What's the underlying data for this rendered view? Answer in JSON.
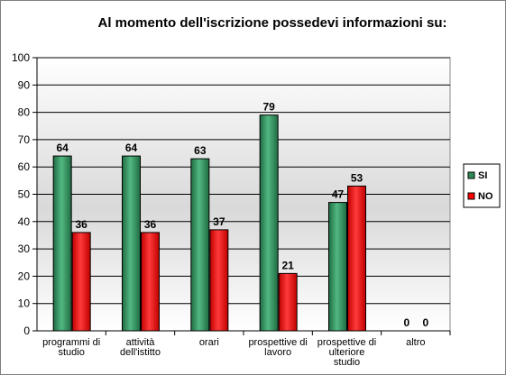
{
  "chart_data": {
    "type": "bar",
    "title": "Al momento dell'iscrizione possedevi informazioni su:",
    "categories": [
      [
        "programmi di",
        "studio"
      ],
      [
        "attività",
        "dell'istitto"
      ],
      [
        "orari"
      ],
      [
        "prospettive di",
        "lavoro"
      ],
      [
        "prospettive di",
        "ulteriore",
        "studio"
      ],
      [
        "altro"
      ]
    ],
    "series": [
      {
        "name": "SI",
        "color": "#2e8b57",
        "values": [
          64,
          64,
          63,
          79,
          47,
          0
        ]
      },
      {
        "name": "NO",
        "color": "#ff0000",
        "values": [
          36,
          36,
          37,
          21,
          53,
          0
        ]
      }
    ],
    "ylim": [
      0,
      100
    ],
    "yticks": [
      0,
      10,
      20,
      30,
      40,
      50,
      60,
      70,
      80,
      90,
      100
    ],
    "grid": true,
    "legend_position": "right",
    "xlabel": "",
    "ylabel": ""
  }
}
